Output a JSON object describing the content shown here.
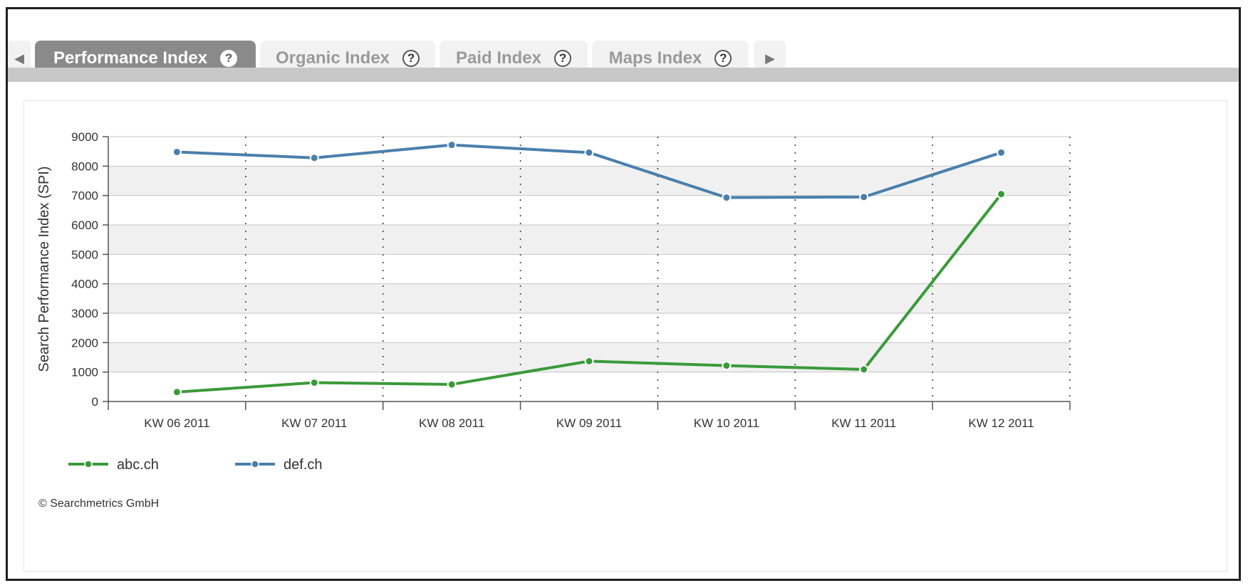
{
  "tabs": {
    "items": [
      {
        "label": "Performance Index",
        "active": true
      },
      {
        "label": "Organic Index",
        "active": false
      },
      {
        "label": "Paid Index",
        "active": false
      },
      {
        "label": "Maps Index",
        "active": false
      }
    ],
    "help_glyph": "?",
    "scroll_left_icon": "arrow-left-icon",
    "scroll_right_icon": "arrow-right-icon"
  },
  "chart_data": {
    "type": "line",
    "title": "",
    "ylabel": "Search Performance Index (SPI)",
    "xlabel": "",
    "ylim": [
      0,
      9000
    ],
    "yticks": [
      "0",
      "1000",
      "2000",
      "3000",
      "4000",
      "5000",
      "6000",
      "7000",
      "8000",
      "9000"
    ],
    "categories": [
      "KW 06 2011",
      "KW 07 2011",
      "KW 08 2011",
      "KW 09 2011",
      "KW 10 2011",
      "KW 11 2011",
      "KW 12 2011"
    ],
    "series": [
      {
        "name": "abc.ch",
        "color": "#3a9a3a",
        "values": [
          320,
          640,
          580,
          1370,
          1220,
          1090,
          7050
        ]
      },
      {
        "name": "def.ch",
        "color": "#4a7fab",
        "values": [
          8480,
          8280,
          8720,
          8460,
          6930,
          6950,
          8460
        ]
      }
    ],
    "grid": true,
    "legend_position": "bottom-left"
  },
  "footer": {
    "credit": "© Searchmetrics GmbH"
  }
}
